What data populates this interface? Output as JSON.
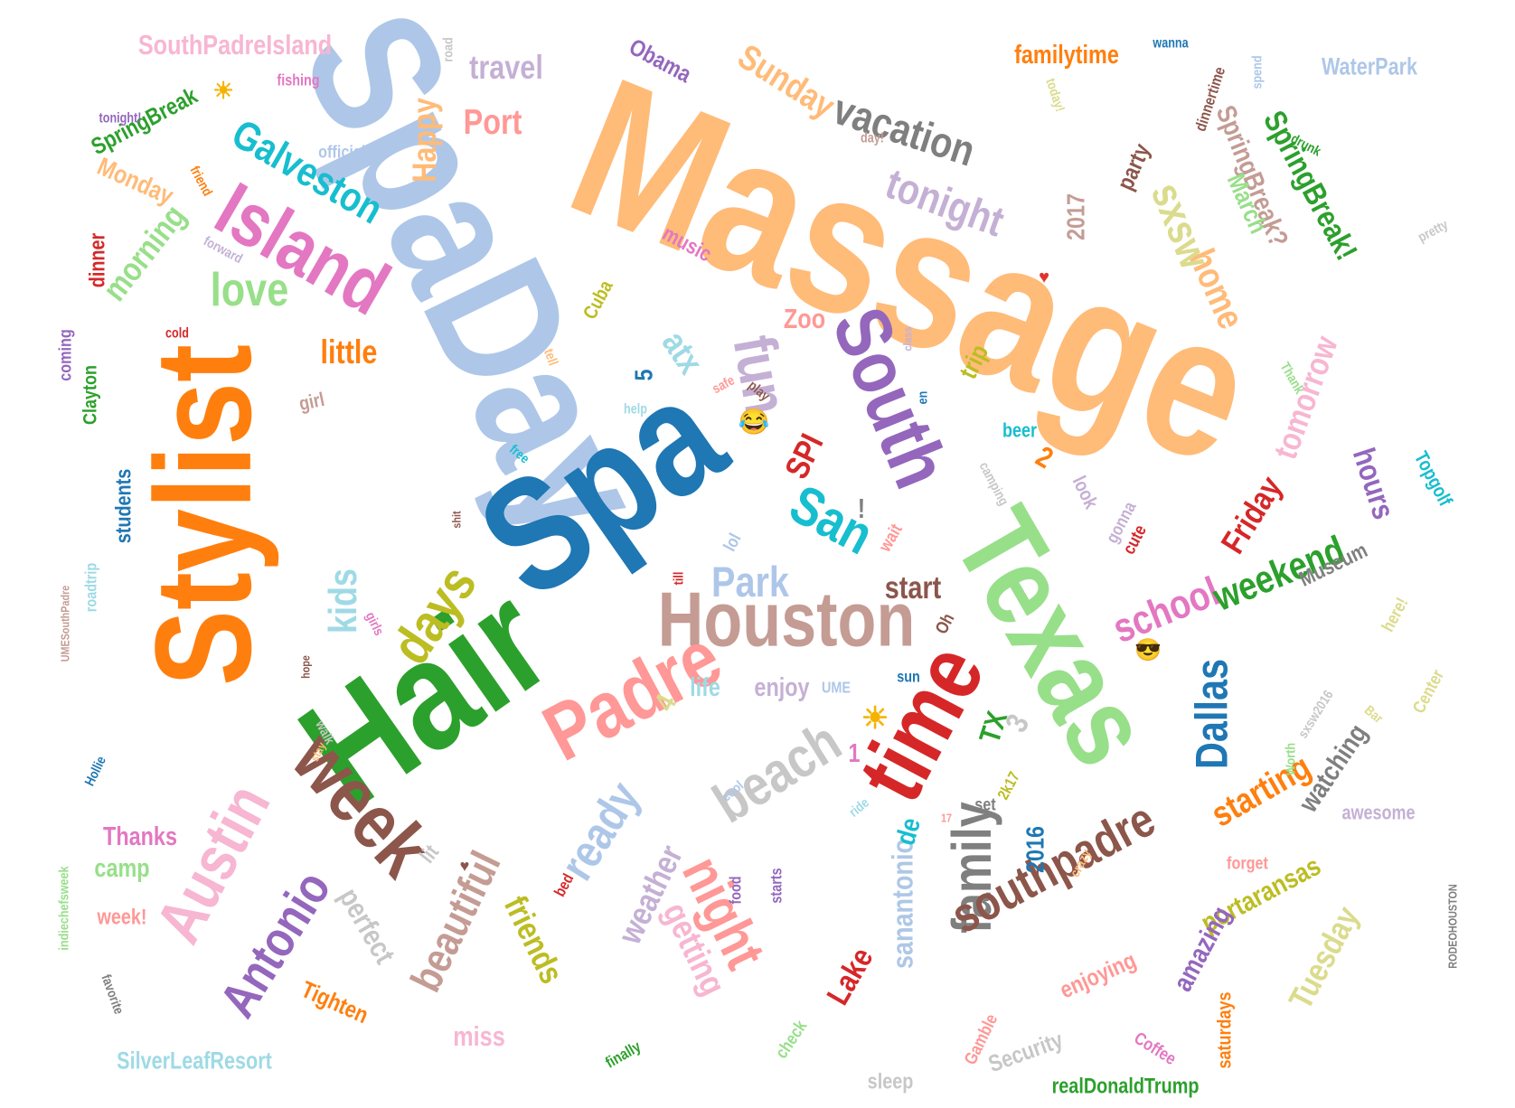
{
  "words": [
    {
      "text": "Massage",
      "color": "#ffbb78"
    },
    {
      "text": "SpaDay",
      "color": "#aec7e8"
    },
    {
      "text": "Spa",
      "color": "#1f77b4"
    },
    {
      "text": "Hair",
      "color": "#2ca02c"
    },
    {
      "text": "Stylist",
      "color": "#ff7f0e"
    },
    {
      "text": "Texas",
      "color": "#98df8a"
    },
    {
      "text": "time",
      "color": "#d62728"
    },
    {
      "text": "South",
      "color": "#9467bd"
    },
    {
      "text": "Houston",
      "color": "#c49c94"
    },
    {
      "text": "Padre",
      "color": "#ff9896"
    },
    {
      "text": "week",
      "color": "#8c564b"
    },
    {
      "text": "Island",
      "color": "#e377c2"
    },
    {
      "text": "family",
      "color": "#7f7f7f"
    },
    {
      "text": "beach",
      "color": "#c7c7c7"
    },
    {
      "text": "Austin",
      "color": "#f7b6d2"
    },
    {
      "text": "San",
      "color": "#17becf"
    },
    {
      "text": "fun",
      "color": "#c5b0d5"
    },
    {
      "text": "Galveston",
      "color": "#17becf"
    },
    {
      "text": "vacation",
      "color": "#7f7f7f"
    },
    {
      "text": "tonight",
      "color": "#c5b0d5"
    },
    {
      "text": "love",
      "color": "#98df8a"
    },
    {
      "text": "days",
      "color": "#bcbd22"
    },
    {
      "text": "Antonio",
      "color": "#9467bd"
    },
    {
      "text": "southpadre",
      "color": "#8c564b"
    },
    {
      "text": "night",
      "color": "#ff9896"
    },
    {
      "text": "ready",
      "color": "#aec7e8"
    },
    {
      "text": "Dallas",
      "color": "#1f77b4"
    },
    {
      "text": "school",
      "color": "#e377c2"
    },
    {
      "text": "weekend",
      "color": "#2ca02c"
    },
    {
      "text": "tomorrow",
      "color": "#f7b6d2"
    },
    {
      "text": "home",
      "color": "#ffbb78"
    },
    {
      "text": "sxsw",
      "color": "#dbdb8d"
    },
    {
      "text": "SpringBreak!",
      "color": "#2ca02c"
    },
    {
      "text": "Friday",
      "color": "#d62728"
    },
    {
      "text": "starting",
      "color": "#ff7f0e"
    },
    {
      "text": "kids",
      "color": "#9edae5"
    },
    {
      "text": "Park",
      "color": "#aec7e8"
    },
    {
      "text": "Sunday",
      "color": "#ffbb78"
    },
    {
      "text": "Happy",
      "color": "#ffbb78"
    },
    {
      "text": "Port",
      "color": "#ff9896"
    },
    {
      "text": "travel",
      "color": "#c5b0d5"
    },
    {
      "text": "Obama",
      "color": "#9467bd"
    },
    {
      "text": "SouthPadreIsland",
      "color": "#f7b6d2"
    },
    {
      "text": "SpringBreak",
      "color": "#2ca02c"
    },
    {
      "text": "Monday",
      "color": "#ffbb78"
    },
    {
      "text": "morning",
      "color": "#98df8a"
    },
    {
      "text": "little",
      "color": "#ff7f0e"
    },
    {
      "text": "dinner",
      "color": "#d62728"
    },
    {
      "text": "Clayton",
      "color": "#2ca02c"
    },
    {
      "text": "coming",
      "color": "#9467bd"
    },
    {
      "text": "students",
      "color": "#1f77b4"
    },
    {
      "text": "Thanks",
      "color": "#e377c2"
    },
    {
      "text": "camp",
      "color": "#98df8a"
    },
    {
      "text": "week!",
      "color": "#ff9896"
    },
    {
      "text": "Tighten",
      "color": "#ff7f0e"
    },
    {
      "text": "SilverLeafResort",
      "color": "#9edae5"
    },
    {
      "text": "beautiful",
      "color": "#c49c94"
    },
    {
      "text": "perfect",
      "color": "#c7c7c7"
    },
    {
      "text": "friends",
      "color": "#bcbd22"
    },
    {
      "text": "miss",
      "color": "#f7b6d2"
    },
    {
      "text": "weather",
      "color": "#c5b0d5"
    },
    {
      "text": "getting",
      "color": "#f7b6d2"
    },
    {
      "text": "Lake",
      "color": "#d62728"
    },
    {
      "text": "sanantonio",
      "color": "#aec7e8"
    },
    {
      "text": "realDonaldTrump",
      "color": "#2ca02c"
    },
    {
      "text": "portaransas",
      "color": "#bcbd22"
    },
    {
      "text": "Tuesday",
      "color": "#dbdb8d"
    },
    {
      "text": "amazing",
      "color": "#9467bd"
    },
    {
      "text": "enjoying",
      "color": "#ff9896"
    },
    {
      "text": "saturdays",
      "color": "#ff7f0e"
    },
    {
      "text": "watching",
      "color": "#7f7f7f"
    },
    {
      "text": "Museum",
      "color": "#7f7f7f"
    },
    {
      "text": "awesome",
      "color": "#c5b0d5"
    },
    {
      "text": "Topgolf",
      "color": "#17becf"
    },
    {
      "text": "hours",
      "color": "#9467bd"
    },
    {
      "text": "SpringBreak?",
      "color": "#c49c94"
    },
    {
      "text": "WaterPark",
      "color": "#aec7e8"
    },
    {
      "text": "familytime",
      "color": "#ff7f0e"
    },
    {
      "text": "party",
      "color": "#8c564b"
    },
    {
      "text": "March",
      "color": "#98df8a"
    },
    {
      "text": "2017",
      "color": "#c49c94"
    },
    {
      "text": "trip",
      "color": "#bcbd22"
    },
    {
      "text": "start",
      "color": "#8c564b"
    },
    {
      "text": "atx",
      "color": "#9edae5"
    },
    {
      "text": "Zoo",
      "color": "#ff9896"
    },
    {
      "text": "SPI",
      "color": "#d62728"
    },
    {
      "text": "TX",
      "color": "#2ca02c"
    },
    {
      "text": "2016",
      "color": "#1f77b4"
    },
    {
      "text": "de",
      "color": "#17becf"
    },
    {
      "text": "life",
      "color": "#9edae5"
    },
    {
      "text": "enjoy",
      "color": "#c5b0d5"
    },
    {
      "text": "UME",
      "color": "#aec7e8"
    },
    {
      "text": "lit",
      "color": "#c7c7c7"
    },
    {
      "text": "girl",
      "color": "#c49c94"
    },
    {
      "text": "music",
      "color": "#e377c2"
    },
    {
      "text": "Cuba",
      "color": "#bcbd22"
    },
    {
      "text": "beer",
      "color": "#17becf"
    },
    {
      "text": "look",
      "color": "#c5b0d5"
    },
    {
      "text": "gonna",
      "color": "#c5b0d5"
    },
    {
      "text": "cute",
      "color": "#d62728"
    },
    {
      "text": "lol",
      "color": "#aec7e8"
    },
    {
      "text": "set",
      "color": "#7f7f7f"
    },
    {
      "text": "Oh",
      "color": "#8c564b"
    },
    {
      "text": "sun",
      "color": "#1f77b4"
    },
    {
      "text": "food",
      "color": "#9467bd"
    },
    {
      "text": "starts",
      "color": "#9467bd"
    },
    {
      "text": "bed",
      "color": "#d62728"
    },
    {
      "text": "Security",
      "color": "#c7c7c7"
    },
    {
      "text": "Coffee",
      "color": "#e377c2"
    },
    {
      "text": "sleep",
      "color": "#c7c7c7"
    },
    {
      "text": "check",
      "color": "#98df8a"
    },
    {
      "text": "finally",
      "color": "#2ca02c"
    },
    {
      "text": "favorite",
      "color": "#7f7f7f"
    },
    {
      "text": "indiechefsweek",
      "color": "#98df8a"
    },
    {
      "text": "Hollie",
      "color": "#1f77b4"
    },
    {
      "text": "roadtrip",
      "color": "#9edae5"
    },
    {
      "text": "UMESouthPadre",
      "color": "#c49c94"
    },
    {
      "text": "RODEOHOUSTON",
      "color": "#7f7f7f"
    },
    {
      "text": "sxsw2016",
      "color": "#c7c7c7"
    },
    {
      "text": "Worth",
      "color": "#98df8a"
    },
    {
      "text": "Center",
      "color": "#dbdb8d"
    },
    {
      "text": "forget",
      "color": "#ff9896"
    },
    {
      "text": "crazy",
      "color": "#ffbb78"
    },
    {
      "text": "2k17",
      "color": "#bcbd22"
    },
    {
      "text": "officially",
      "color": "#aec7e8"
    },
    {
      "text": "fishing",
      "color": "#e377c2"
    },
    {
      "text": "tonight!",
      "color": "#9467bd"
    },
    {
      "text": "friend",
      "color": "#ff7f0e"
    },
    {
      "text": "forward",
      "color": "#c5b0d5"
    },
    {
      "text": "cold",
      "color": "#d62728"
    },
    {
      "text": "wanna",
      "color": "#1f77b4"
    },
    {
      "text": "today!",
      "color": "#dbdb8d"
    },
    {
      "text": "spend",
      "color": "#aec7e8"
    },
    {
      "text": "dinnertime",
      "color": "#8c564b"
    },
    {
      "text": "drunk",
      "color": "#2ca02c"
    },
    {
      "text": "pretty",
      "color": "#c7c7c7"
    },
    {
      "text": "Thank",
      "color": "#98df8a"
    },
    {
      "text": "day!",
      "color": "#c49c94"
    },
    {
      "text": "road",
      "color": "#c7c7c7"
    },
    {
      "text": "class",
      "color": "#c5b0d5"
    },
    {
      "text": "en",
      "color": "#1f77b4"
    },
    {
      "text": "play",
      "color": "#8c564b"
    },
    {
      "text": "safe",
      "color": "#ff9896"
    },
    {
      "text": "help",
      "color": "#9edae5"
    },
    {
      "text": "tell",
      "color": "#ffbb78"
    },
    {
      "text": "free",
      "color": "#17becf"
    },
    {
      "text": "shit",
      "color": "#8c564b"
    },
    {
      "text": "hope",
      "color": "#8c564b"
    },
    {
      "text": "walk",
      "color": "#c7c7c7"
    },
    {
      "text": "girls",
      "color": "#e377c2"
    },
    {
      "text": "till",
      "color": "#d62728"
    },
    {
      "text": "wait",
      "color": "#ff9896"
    },
    {
      "text": "here!",
      "color": "#dbdb8d"
    },
    {
      "text": "Bar",
      "color": "#dbdb8d"
    },
    {
      "text": "cool",
      "color": "#aec7e8"
    },
    {
      "text": "ride",
      "color": "#9edae5"
    },
    {
      "text": "17",
      "color": "#ff9896"
    },
    {
      "text": "Gamble",
      "color": "#ff9896"
    },
    {
      "text": "camping",
      "color": "#c7c7c7"
    },
    {
      "text": "stay",
      "color": "#ffbb78"
    },
    {
      "text": "5",
      "color": "#1f77b4"
    },
    {
      "text": "2",
      "color": "#ff7f0e"
    },
    {
      "text": "3",
      "color": "#c7c7c7"
    },
    {
      "text": "4",
      "color": "#dbdb8d"
    },
    {
      "text": "1",
      "color": "#e377c2"
    },
    {
      "text": "!",
      "color": "#7f7f7f"
    }
  ],
  "emoji": [
    {
      "name": "sun-icon",
      "glyph": "☀"
    },
    {
      "name": "tears-of-joy-icon",
      "glyph": "😂"
    },
    {
      "name": "heart-icon",
      "glyph": "♥"
    },
    {
      "name": "sun-icon",
      "glyph": "☀"
    },
    {
      "name": "sunglasses-face-icon",
      "glyph": "😎"
    },
    {
      "name": "heart-icon",
      "glyph": "♥"
    }
  ]
}
